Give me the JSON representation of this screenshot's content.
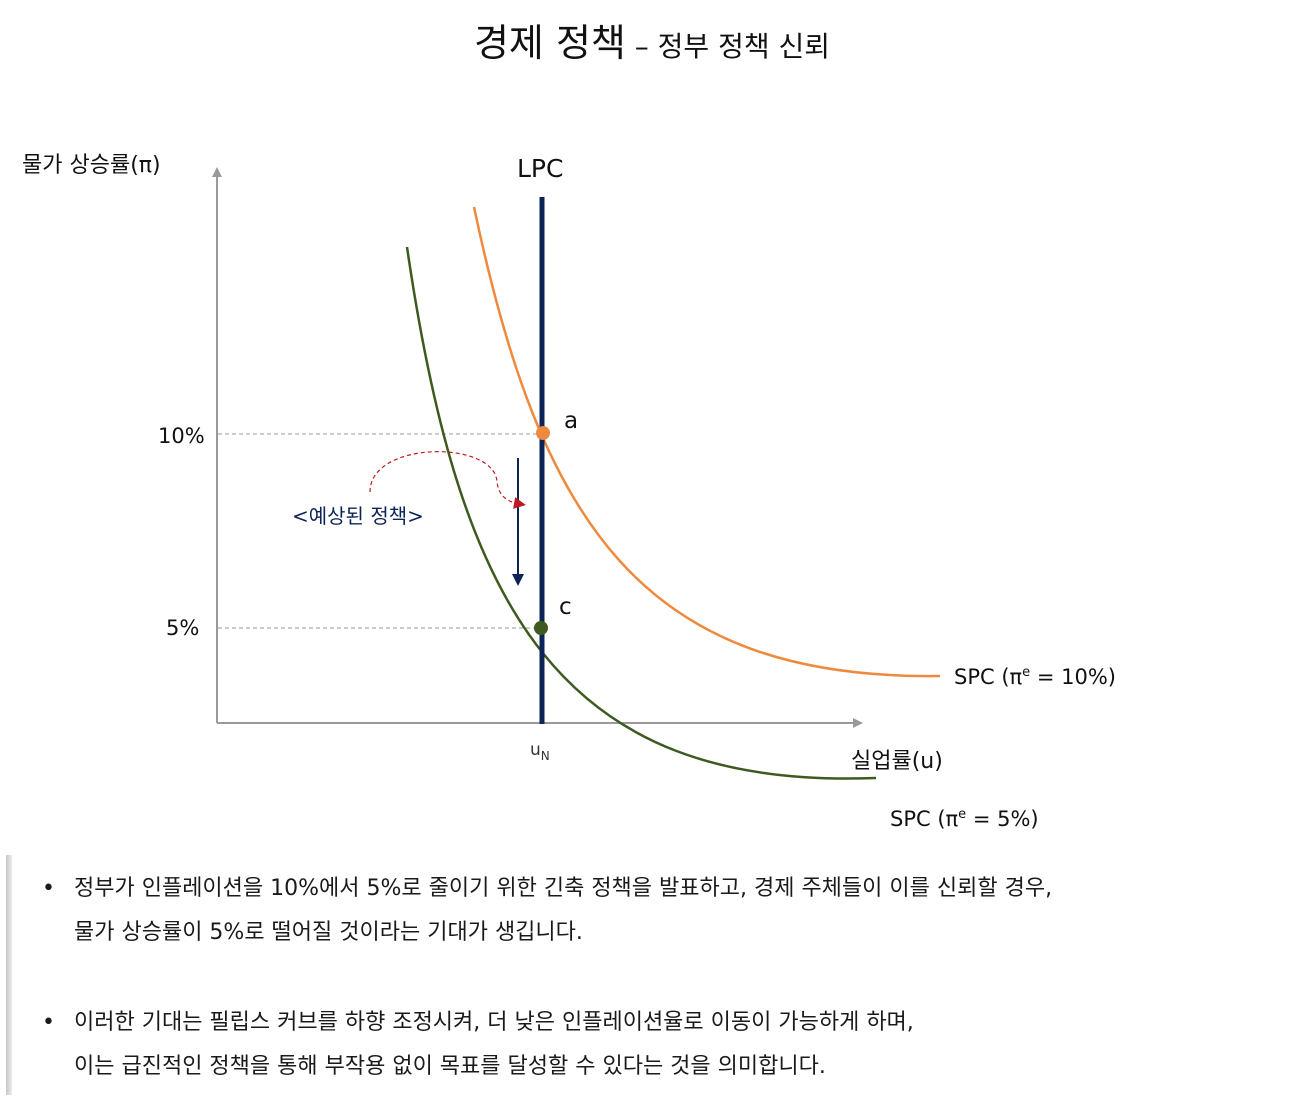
{
  "title": {
    "main": "경제 정책",
    "sub": " – 정부 정책 신뢰"
  },
  "diagram": {
    "y_axis_label": "물가 상승률(π)",
    "x_axis_label": "실업률(u)",
    "lpc_label": "LPC",
    "natural_rate_label": "u",
    "natural_rate_subscript": "N",
    "tick_10": "10%",
    "tick_5": "5%",
    "point_a": "a",
    "point_c": "c",
    "policy_label": "<예상된 정책>",
    "spc_high": {
      "prefix": "SPC (π",
      "superscript": "e",
      "suffix": " = 10%)"
    },
    "spc_low": {
      "prefix": "SPC (π",
      "superscript": "e",
      "suffix": " = 5%)"
    },
    "colors": {
      "lpc": "#0d2357",
      "spc_high": "#ee8a3e",
      "spc_low": "#3d5a1f",
      "arrow": "#0d2357",
      "dashed_arrow": "#c0191e",
      "axis": "#9a9a9a",
      "guide": "#9a9a9a"
    }
  },
  "notes": [
    {
      "bullet": "•",
      "lines": [
        "정부가 인플레이션을 10%에서 5%로 줄이기 위한 긴축 정책을 발표하고, 경제 주체들이 이를 신뢰할 경우,",
        "물가 상승률이 5%로 떨어질 것이라는 기대가 생깁니다."
      ]
    },
    {
      "bullet": "•",
      "lines": [
        "이러한 기대는 필립스 커브를 하향 조정시켜, 더 낮은 인플레이션율로 이동이 가능하게 하며,",
        "이는 급진적인 정책을 통해 부작용 없이 목표를 달성할 수 있다는 것을 의미합니다."
      ]
    }
  ]
}
